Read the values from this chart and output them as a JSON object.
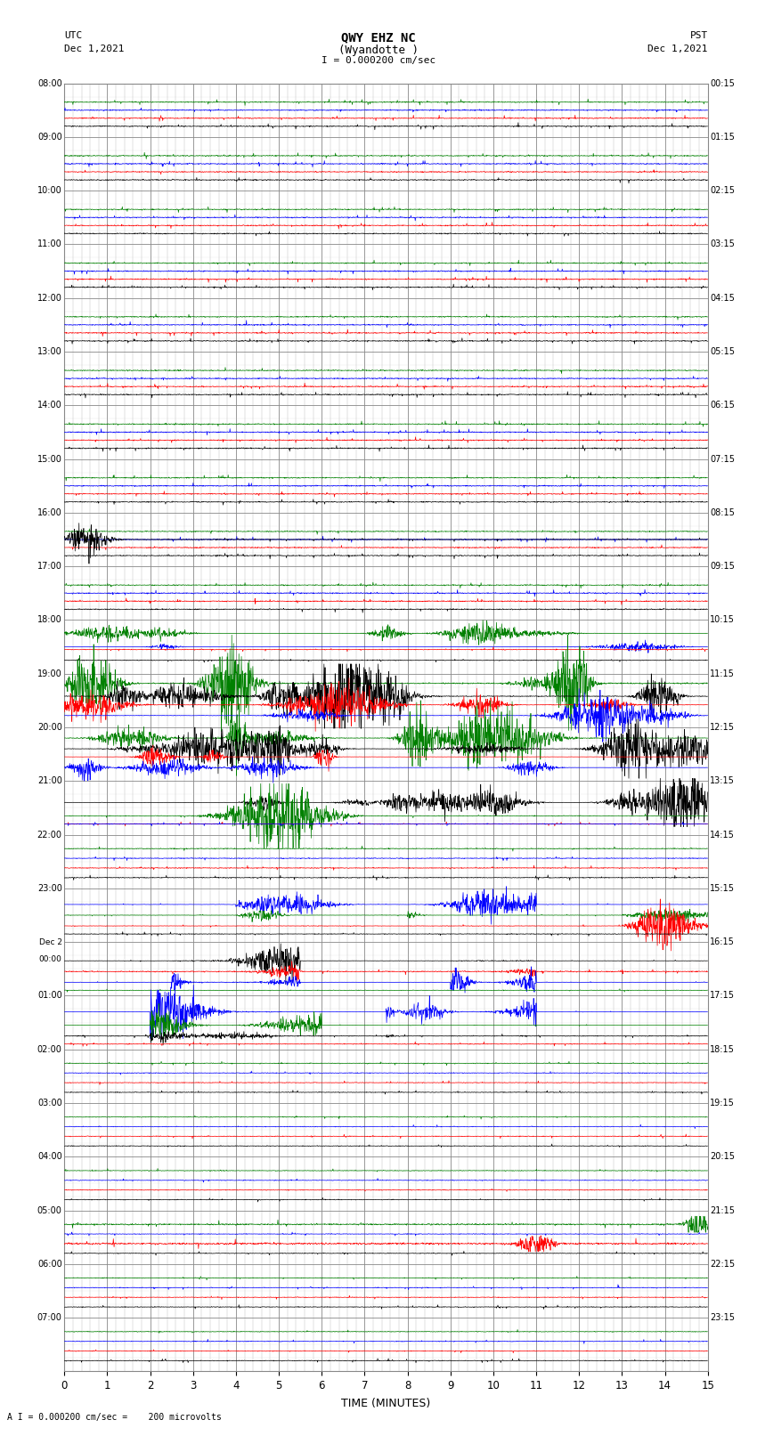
{
  "title_line1": "QWY EHZ NC",
  "title_line2": "(Wyandotte )",
  "scale_text": "I = 0.000200 cm/sec",
  "left_label_top": "UTC",
  "left_label_date": "Dec 1,2021",
  "right_label_top": "PST",
  "right_label_date": "Dec 1,2021",
  "bottom_label": "TIME (MINUTES)",
  "footer_text": "A I = 0.000200 cm/sec =    200 microvolts",
  "utc_times": [
    "08:00",
    "09:00",
    "10:00",
    "11:00",
    "12:00",
    "13:00",
    "14:00",
    "15:00",
    "16:00",
    "17:00",
    "18:00",
    "19:00",
    "20:00",
    "21:00",
    "22:00",
    "23:00",
    "Dec 2\n00:00",
    "01:00",
    "02:00",
    "03:00",
    "04:00",
    "05:00",
    "06:00",
    "07:00"
  ],
  "pst_times": [
    "00:15",
    "01:15",
    "02:15",
    "03:15",
    "04:15",
    "05:15",
    "06:15",
    "07:15",
    "08:15",
    "09:15",
    "10:15",
    "11:15",
    "12:15",
    "13:15",
    "14:15",
    "15:15",
    "16:15",
    "17:15",
    "18:15",
    "19:15",
    "20:15",
    "21:15",
    "22:15",
    "23:15"
  ],
  "n_rows": 24,
  "n_minutes": 15,
  "bg_color": "#ffffff",
  "grid_color": "#888888",
  "minor_grid_color": "#bbbbbb"
}
